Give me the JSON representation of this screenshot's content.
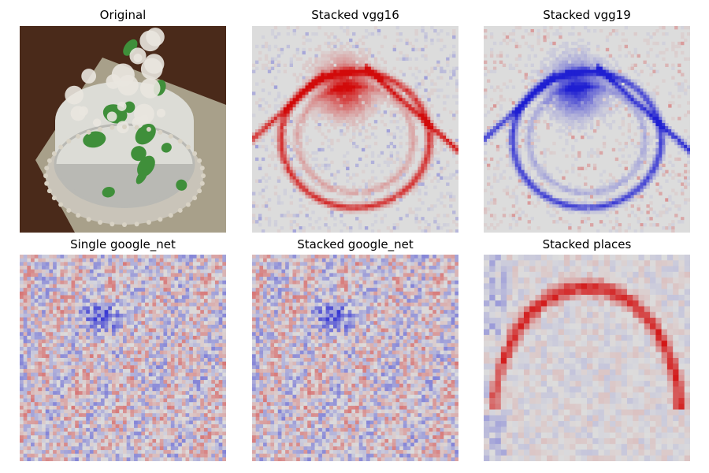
{
  "figure": {
    "panels": [
      {
        "title": "Original",
        "kind": "photo",
        "seed": 1
      },
      {
        "title": "Stacked vgg16",
        "kind": "smooth-map",
        "seed": 2,
        "dominant": "red"
      },
      {
        "title": "Stacked vgg19",
        "kind": "smooth-map",
        "seed": 3,
        "dominant": "blue"
      },
      {
        "title": "Single google_net",
        "kind": "noisy-map",
        "seed": 4
      },
      {
        "title": "Stacked google_net",
        "kind": "noisy-map",
        "seed": 4
      },
      {
        "title": "Stacked places",
        "kind": "blocky-map",
        "seed": 5
      }
    ],
    "colormap": {
      "negative": "#1f1fd2",
      "neutral": "#dcdcdc",
      "positive": "#d20a0a"
    },
    "photo_colors": {
      "table": "#4a2a1a",
      "napkin": "#a8a08a",
      "cake": "#dcdcd6",
      "cake_shadow": "#b9b9b4",
      "plate": "#c9c4b9",
      "leaves": "#3f8f3a",
      "flowers": "#e9e6df"
    }
  }
}
